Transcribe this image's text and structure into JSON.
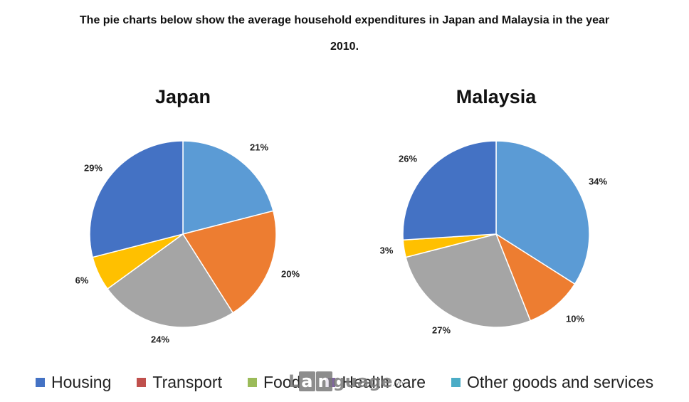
{
  "header": {
    "line1": "The pie charts below show the average household expenditures in Japan and Malaysia in the year",
    "line2": "2010."
  },
  "legend": [
    {
      "label": "Housing",
      "color": "#4472c4"
    },
    {
      "label": "Transport",
      "color": "#c0504d"
    },
    {
      "label": "Food",
      "color": "#9bbb59"
    },
    {
      "label": "Health care",
      "color": "#8064a2"
    },
    {
      "label": "Other goods and services",
      "color": "#4bacc6"
    }
  ],
  "watermark": {
    "letters": [
      "L",
      "a",
      "n",
      "g",
      "u",
      "a",
      "g",
      "e"
    ],
    "suffix": ".vn"
  },
  "chart_data": [
    {
      "type": "pie",
      "title": "Japan",
      "slices": [
        {
          "label": "21%",
          "value": 21,
          "color": "#5b9bd5"
        },
        {
          "label": "20%",
          "value": 20,
          "color": "#ed7d31"
        },
        {
          "label": "24%",
          "value": 24,
          "color": "#a5a5a5"
        },
        {
          "label": "6%",
          "value": 6,
          "color": "#ffc000"
        },
        {
          "label": "29%",
          "value": 29,
          "color": "#4472c4"
        }
      ]
    },
    {
      "type": "pie",
      "title": "Malaysia",
      "slices": [
        {
          "label": "34%",
          "value": 34,
          "color": "#5b9bd5"
        },
        {
          "label": "10%",
          "value": 10,
          "color": "#ed7d31"
        },
        {
          "label": "27%",
          "value": 27,
          "color": "#a5a5a5"
        },
        {
          "label": "3%",
          "value": 3,
          "color": "#ffc000"
        },
        {
          "label": "26%",
          "value": 26,
          "color": "#4472c4"
        }
      ]
    }
  ]
}
